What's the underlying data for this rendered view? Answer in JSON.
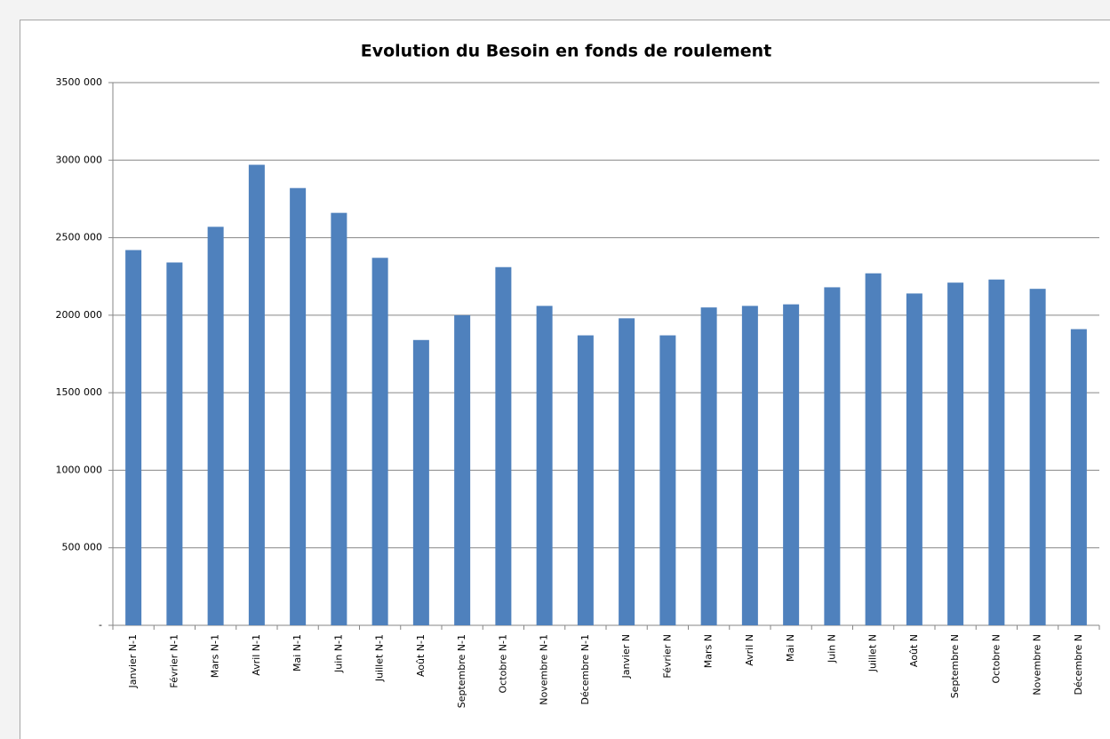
{
  "chart_data": {
    "type": "bar",
    "title": "Evolution du Besoin en fonds de roulement",
    "categories": [
      "Janvier N-1",
      "Février N-1",
      "Mars N-1",
      "Avril N-1",
      "Mai N-1",
      "Juin N-1",
      "Juillet N-1",
      "Août N-1",
      "Septembre N-1",
      "Octobre N-1",
      "Novembre N-1",
      "Décembre N-1",
      "Janvier N",
      "Février N",
      "Mars N",
      "Avril N",
      "Mai N",
      "Juin N",
      "Juillet N",
      "Août N",
      "Septembre N",
      "Octobre N",
      "Novembre N",
      "Décembre N"
    ],
    "values": [
      2420000,
      2340000,
      2570000,
      2970000,
      2820000,
      2660000,
      2370000,
      1840000,
      2000000,
      2310000,
      2060000,
      1870000,
      1980000,
      1870000,
      2050000,
      2060000,
      2070000,
      2180000,
      2270000,
      2140000,
      2210000,
      2230000,
      2170000,
      1910000
    ],
    "color": "#4f81bd",
    "ylim": [
      0,
      3500000
    ],
    "yticks": [
      {
        "value": 0,
        "label": "-"
      },
      {
        "value": 500000,
        "label": "500 000"
      },
      {
        "value": 1000000,
        "label": "1000 000"
      },
      {
        "value": 1500000,
        "label": "1500 000"
      },
      {
        "value": 2000000,
        "label": "2000 000"
      },
      {
        "value": 2500000,
        "label": "2500 000"
      },
      {
        "value": 3000000,
        "label": "3000 000"
      },
      {
        "value": 3500000,
        "label": "3500 000"
      }
    ],
    "grid": true
  }
}
